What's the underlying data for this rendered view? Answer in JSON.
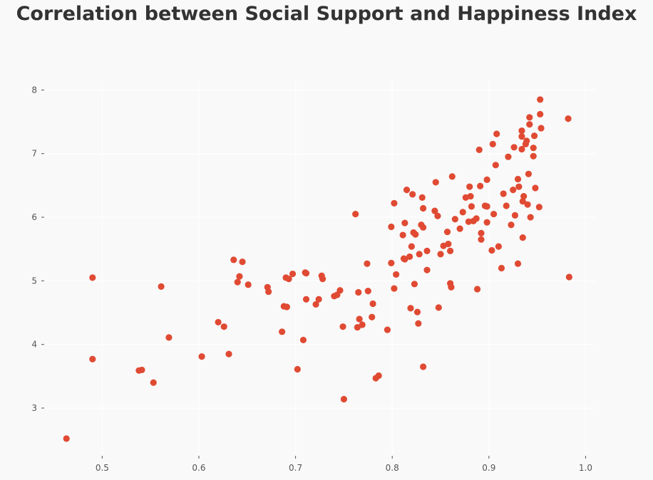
{
  "chart_data": {
    "type": "scatter",
    "title": "Correlation between Social Support and Happiness Index",
    "xlabel": "",
    "ylabel": "",
    "xlim": [
      0.44,
      1.01
    ],
    "ylim": [
      2.25,
      8.15
    ],
    "xticks": [
      0.5,
      0.6,
      0.7,
      0.8,
      0.9,
      1.0
    ],
    "xtick_labels": [
      "0.5",
      "0.6",
      "0.7",
      "0.8",
      "0.9",
      "1.0"
    ],
    "yticks": [
      3,
      4,
      5,
      6,
      7,
      8
    ],
    "ytick_labels": [
      "3",
      "4",
      "5",
      "6",
      "7",
      "8"
    ],
    "grid": true,
    "colors": {
      "point": "#e04a33",
      "background": "#f9f9f9",
      "grid": "#ffffff",
      "tick": "#555555",
      "title": "#333333"
    },
    "points": [
      [
        0.463,
        2.52
      ],
      [
        0.49,
        5.05
      ],
      [
        0.49,
        3.77
      ],
      [
        0.538,
        3.59
      ],
      [
        0.541,
        3.6
      ],
      [
        0.553,
        3.4
      ],
      [
        0.561,
        4.91
      ],
      [
        0.569,
        4.11
      ],
      [
        0.603,
        3.81
      ],
      [
        0.62,
        4.35
      ],
      [
        0.626,
        4.28
      ],
      [
        0.631,
        3.85
      ],
      [
        0.636,
        5.33
      ],
      [
        0.64,
        4.98
      ],
      [
        0.642,
        5.07
      ],
      [
        0.645,
        5.3
      ],
      [
        0.651,
        4.94
      ],
      [
        0.671,
        4.9
      ],
      [
        0.672,
        4.83
      ],
      [
        0.686,
        4.2
      ],
      [
        0.688,
        4.6
      ],
      [
        0.69,
        5.05
      ],
      [
        0.691,
        4.59
      ],
      [
        0.693,
        5.03
      ],
      [
        0.697,
        5.11
      ],
      [
        0.702,
        3.61
      ],
      [
        0.708,
        4.07
      ],
      [
        0.71,
        5.13
      ],
      [
        0.711,
        4.71
      ],
      [
        0.711,
        5.12
      ],
      [
        0.721,
        4.63
      ],
      [
        0.724,
        4.71
      ],
      [
        0.727,
        5.08
      ],
      [
        0.728,
        5.03
      ],
      [
        0.74,
        4.76
      ],
      [
        0.743,
        4.78
      ],
      [
        0.746,
        4.85
      ],
      [
        0.749,
        4.28
      ],
      [
        0.75,
        3.14
      ],
      [
        0.762,
        6.05
      ],
      [
        0.764,
        4.27
      ],
      [
        0.765,
        4.82
      ],
      [
        0.766,
        4.4
      ],
      [
        0.769,
        4.31
      ],
      [
        0.774,
        5.27
      ],
      [
        0.775,
        4.84
      ],
      [
        0.779,
        4.43
      ],
      [
        0.78,
        4.64
      ],
      [
        0.783,
        3.47
      ],
      [
        0.786,
        3.51
      ],
      [
        0.795,
        4.23
      ],
      [
        0.799,
        5.85
      ],
      [
        0.799,
        5.28
      ],
      [
        0.802,
        6.22
      ],
      [
        0.802,
        4.88
      ],
      [
        0.804,
        5.1
      ],
      [
        0.811,
        5.72
      ],
      [
        0.812,
        5.35
      ],
      [
        0.813,
        5.91
      ],
      [
        0.813,
        5.34
      ],
      [
        0.815,
        6.43
      ],
      [
        0.818,
        5.38
      ],
      [
        0.819,
        4.57
      ],
      [
        0.82,
        5.54
      ],
      [
        0.821,
        6.36
      ],
      [
        0.822,
        5.76
      ],
      [
        0.823,
        4.95
      ],
      [
        0.824,
        5.73
      ],
      [
        0.826,
        4.51
      ],
      [
        0.827,
        4.33
      ],
      [
        0.828,
        5.42
      ],
      [
        0.83,
        5.88
      ],
      [
        0.831,
        6.31
      ],
      [
        0.832,
        5.84
      ],
      [
        0.832,
        6.14
      ],
      [
        0.832,
        3.65
      ],
      [
        0.836,
        5.47
      ],
      [
        0.836,
        5.17
      ],
      [
        0.844,
        6.1
      ],
      [
        0.845,
        6.55
      ],
      [
        0.847,
        6.02
      ],
      [
        0.848,
        4.58
      ],
      [
        0.85,
        5.42
      ],
      [
        0.853,
        5.55
      ],
      [
        0.857,
        5.77
      ],
      [
        0.858,
        5.58
      ],
      [
        0.86,
        5.47
      ],
      [
        0.86,
        4.96
      ],
      [
        0.861,
        4.9
      ],
      [
        0.862,
        6.64
      ],
      [
        0.865,
        5.97
      ],
      [
        0.87,
        5.82
      ],
      [
        0.873,
        6.08
      ],
      [
        0.876,
        6.31
      ],
      [
        0.879,
        5.93
      ],
      [
        0.88,
        6.48
      ],
      [
        0.881,
        6.33
      ],
      [
        0.882,
        6.17
      ],
      [
        0.884,
        5.94
      ],
      [
        0.887,
        5.98
      ],
      [
        0.888,
        4.87
      ],
      [
        0.89,
        7.06
      ],
      [
        0.891,
        6.49
      ],
      [
        0.892,
        5.65
      ],
      [
        0.892,
        5.75
      ],
      [
        0.896,
        6.18
      ],
      [
        0.898,
        5.92
      ],
      [
        0.898,
        6.59
      ],
      [
        0.898,
        6.17
      ],
      [
        0.903,
        5.48
      ],
      [
        0.904,
        7.15
      ],
      [
        0.905,
        6.05
      ],
      [
        0.907,
        6.82
      ],
      [
        0.908,
        7.31
      ],
      [
        0.91,
        5.54
      ],
      [
        0.913,
        5.2
      ],
      [
        0.915,
        6.37
      ],
      [
        0.918,
        6.18
      ],
      [
        0.92,
        6.95
      ],
      [
        0.923,
        5.88
      ],
      [
        0.925,
        6.43
      ],
      [
        0.926,
        7.1
      ],
      [
        0.927,
        6.03
      ],
      [
        0.93,
        5.27
      ],
      [
        0.93,
        6.6
      ],
      [
        0.931,
        6.48
      ],
      [
        0.934,
        7.36
      ],
      [
        0.934,
        7.27
      ],
      [
        0.934,
        7.07
      ],
      [
        0.935,
        6.25
      ],
      [
        0.935,
        5.68
      ],
      [
        0.936,
        6.33
      ],
      [
        0.938,
        7.15
      ],
      [
        0.939,
        7.2
      ],
      [
        0.94,
        6.2
      ],
      [
        0.941,
        6.68
      ],
      [
        0.942,
        7.57
      ],
      [
        0.942,
        7.46
      ],
      [
        0.943,
        6.0
      ],
      [
        0.946,
        7.09
      ],
      [
        0.946,
        6.96
      ],
      [
        0.947,
        7.28
      ],
      [
        0.948,
        6.46
      ],
      [
        0.952,
        6.16
      ],
      [
        0.953,
        7.85
      ],
      [
        0.953,
        7.62
      ],
      [
        0.954,
        7.4
      ],
      [
        0.982,
        7.55
      ],
      [
        0.983,
        5.06
      ]
    ]
  }
}
